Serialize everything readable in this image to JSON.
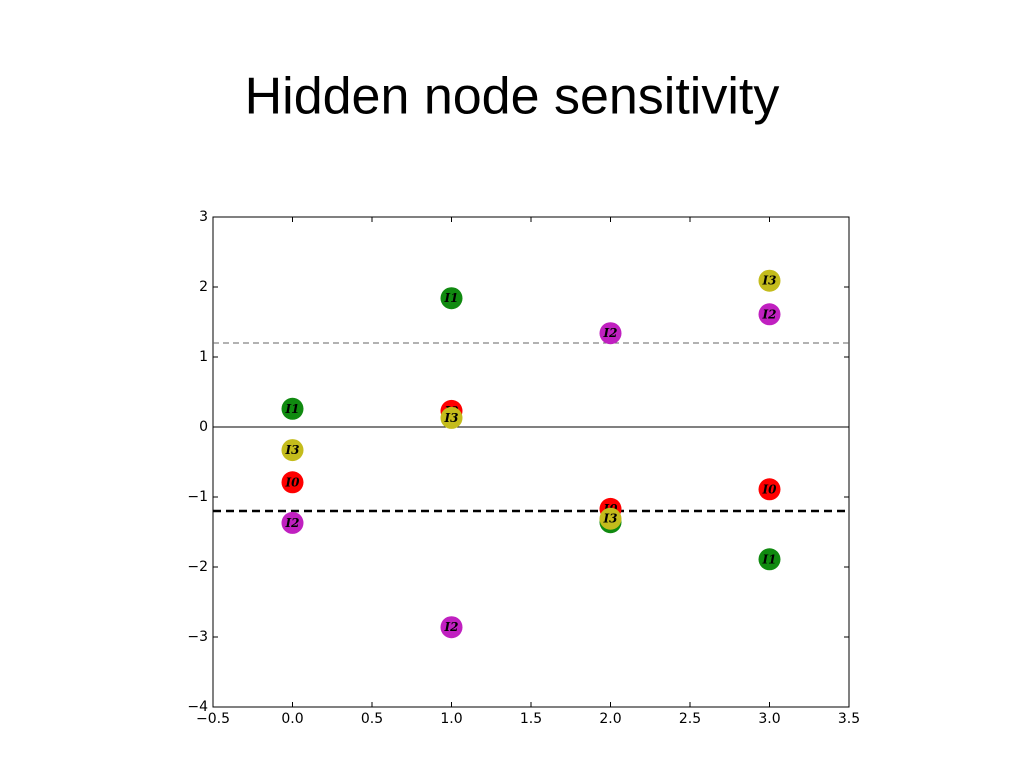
{
  "chart_data": {
    "type": "scatter",
    "title": "Hidden node sensitivity",
    "x": [
      0,
      1,
      2,
      3
    ],
    "series": [
      {
        "name": "I0",
        "color": "#ff0000",
        "values": [
          -0.79,
          0.23,
          -1.17,
          -0.89
        ]
      },
      {
        "name": "I1",
        "color": "#108a10",
        "values": [
          0.26,
          1.84,
          -1.36,
          -1.89
        ]
      },
      {
        "name": "I2",
        "color": "#c020c0",
        "values": [
          -1.37,
          -2.86,
          1.34,
          1.61
        ]
      },
      {
        "name": "I3",
        "color": "#c4bc1c",
        "values": [
          -0.33,
          0.13,
          -1.31,
          2.09
        ]
      }
    ],
    "reference_lines": [
      {
        "value": 1.2,
        "style": "thin-dashed"
      },
      {
        "value": 0,
        "style": "solid"
      },
      {
        "value": -1.2,
        "style": "thick-dashed"
      }
    ],
    "xlim": [
      -0.5,
      3.5
    ],
    "ylim": [
      -4,
      3
    ],
    "xticks": [
      {
        "value": -0.5,
        "label": "−0.5"
      },
      {
        "value": 0,
        "label": "0.0"
      },
      0.5,
      {
        "value": 1,
        "label": "1.0"
      },
      1.5,
      {
        "value": 2,
        "label": "2.0"
      },
      2.5,
      {
        "value": 3,
        "label": "3.0"
      },
      3.5
    ],
    "yticks": [
      {
        "value": -4,
        "label": "−4"
      },
      {
        "value": -3,
        "label": "−3"
      },
      {
        "value": -2,
        "label": "−2"
      },
      {
        "value": -1,
        "label": "−1"
      },
      0,
      1,
      2,
      3
    ]
  }
}
